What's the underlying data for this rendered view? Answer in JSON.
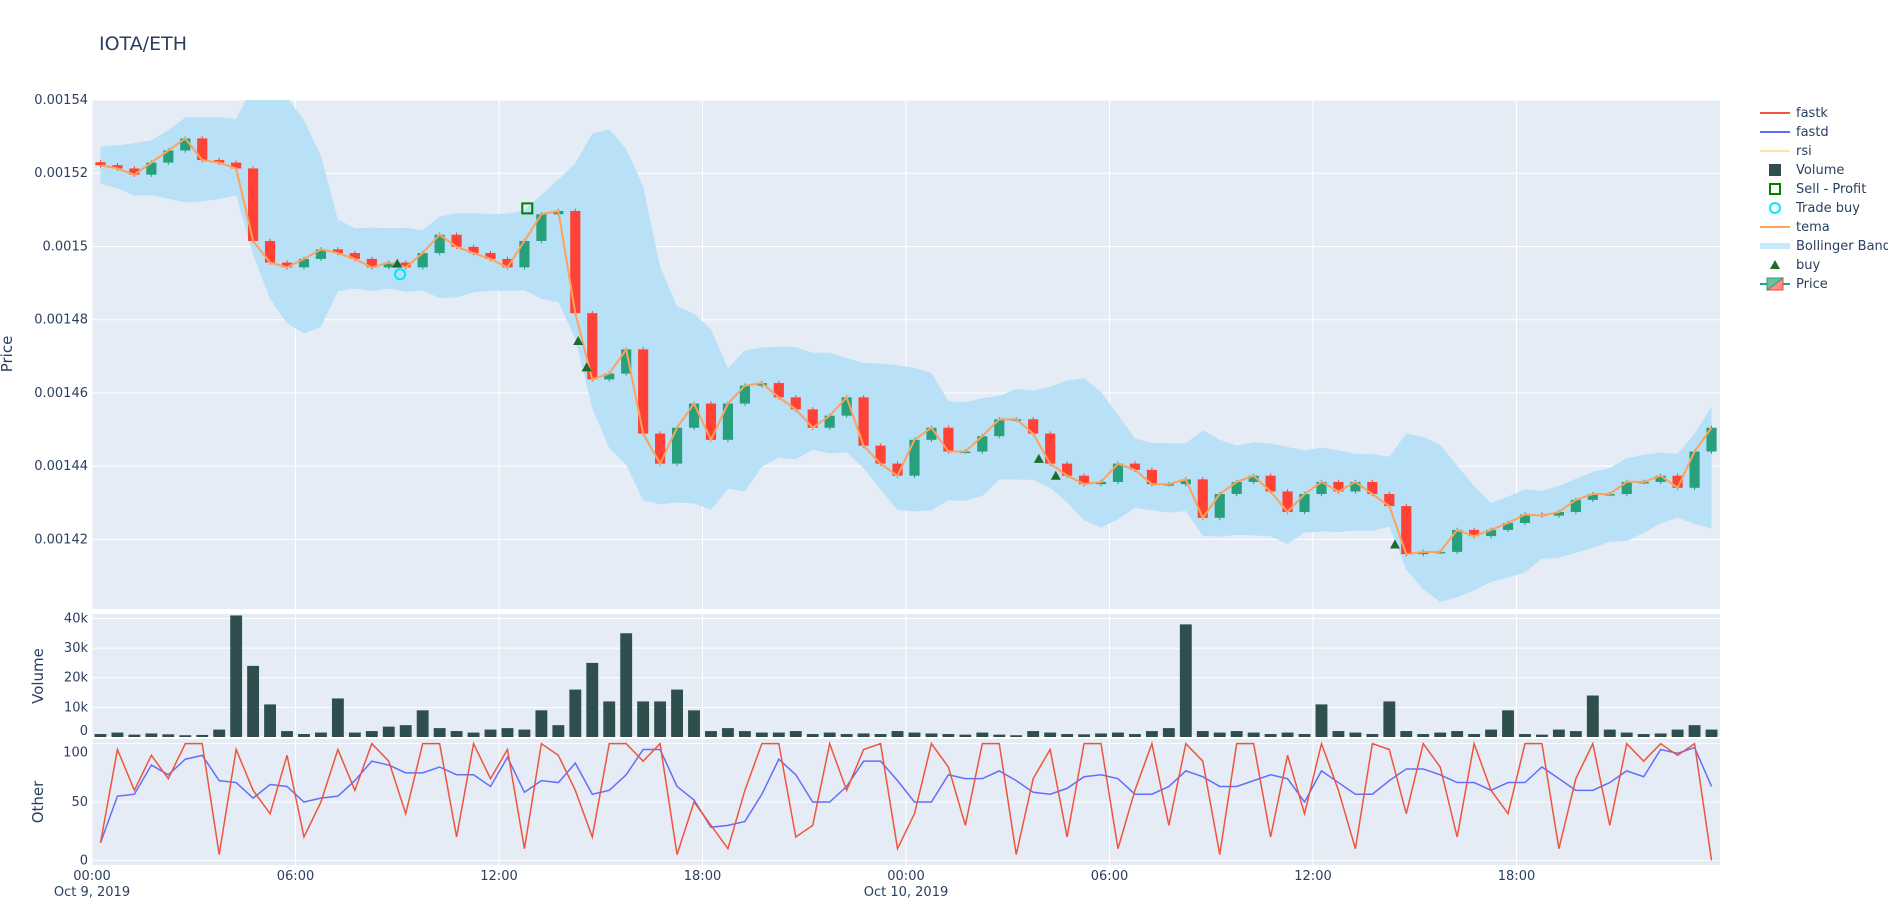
{
  "title": "IOTA/ETH",
  "colors": {
    "plot_bg": "#e5ecf6",
    "grid": "#ffffff",
    "increasing": "#26a17b",
    "decreasing": "#ff4136",
    "tema": "#ffa15a",
    "bollinger": "#b8e0f6",
    "volume": "#2f4f4f",
    "fastk": "#ef553b",
    "fastd": "#636efa",
    "rsi": "#ffe4a8",
    "buy": "#1e6b2a",
    "trade_buy": "#00e5ff",
    "sell_profit": "#008000"
  },
  "legend": {
    "placement": "right",
    "items": [
      {
        "label": "fastk",
        "icon": "line",
        "color": "#ef553b"
      },
      {
        "label": "fastd",
        "icon": "line",
        "color": "#636efa"
      },
      {
        "label": "rsi",
        "icon": "line-hidden",
        "color": "#ffe4a8"
      },
      {
        "label": "Volume",
        "icon": "square-filled",
        "color": "#2f4f4f"
      },
      {
        "label": "Sell - Profit",
        "icon": "square-open",
        "color": "#008000"
      },
      {
        "label": "Trade buy",
        "icon": "circle-open",
        "color": "#00e5ff"
      },
      {
        "label": "tema",
        "icon": "line",
        "color": "#ffa15a"
      },
      {
        "label": "Bollinger Band",
        "icon": "band",
        "color": "#c6e9fb"
      },
      {
        "label": "buy",
        "icon": "triangle-up",
        "color": "#1e6b2a"
      },
      {
        "label": "Price",
        "icon": "candle",
        "color": "#26a17b"
      }
    ]
  },
  "chart_data": [
    {
      "type": "candlestick",
      "ylabel": "Price",
      "ylim": [
        0.001401,
        0.00154
      ],
      "yticks": [
        0.00142,
        0.00144,
        0.00146,
        0.00148,
        0.0015,
        0.00152,
        0.00154
      ],
      "ytick_labels": [
        "0.00142",
        "0.00144",
        "0.00146",
        "0.00148",
        "0.0015",
        "0.00152",
        "0.00154"
      ],
      "grid": true,
      "close": [
        0.0015222,
        0.0015213,
        0.0015196,
        0.0015229,
        0.0015262,
        0.0015295,
        0.0015236,
        0.0015229,
        0.0015213,
        0.0015015,
        0.0014956,
        0.0014943,
        0.0014966,
        0.0014992,
        0.0014982,
        0.0014966,
        0.0014943,
        0.0014956,
        0.0014943,
        0.0014982,
        0.0015032,
        0.0014999,
        0.0014982,
        0.0014966,
        0.0014943,
        0.0015015,
        0.0015088,
        0.0015097,
        0.0014818,
        0.0014637,
        0.0014653,
        0.0014719,
        0.0014489,
        0.0014407,
        0.0014505,
        0.0014571,
        0.0014472,
        0.0014571,
        0.001462,
        0.0014627,
        0.0014588,
        0.0014555,
        0.0014505,
        0.0014538,
        0.0014588,
        0.0014456,
        0.0014407,
        0.0014374,
        0.0014472,
        0.0014505,
        0.001444,
        0.001444,
        0.0014482,
        0.0014528,
        0.0014528,
        0.0014489,
        0.0014407,
        0.0014374,
        0.0014351,
        0.0014357,
        0.0014407,
        0.001439,
        0.0014351,
        0.0014351,
        0.0014364,
        0.0014259,
        0.0014324,
        0.0014357,
        0.0014374,
        0.0014331,
        0.0014275,
        0.0014324,
        0.0014357,
        0.0014331,
        0.0014357,
        0.0014324,
        0.0014291,
        0.001416,
        0.0014166,
        0.0014166,
        0.0014226,
        0.0014209,
        0.0014226,
        0.0014245,
        0.0014268,
        0.0014265,
        0.0014275,
        0.0014308,
        0.0014324,
        0.0014324,
        0.0014357,
        0.0014357,
        0.0014374,
        0.0014341,
        0.001444,
        0.0014505
      ],
      "markers": {
        "buy": [
          {
            "x": "2019-10-09 09:00",
            "y": 0.0014953
          },
          {
            "x": "2019-10-09 14:20",
            "y": 0.0014742
          },
          {
            "x": "2019-10-09 14:35",
            "y": 0.001467
          },
          {
            "x": "2019-10-10 03:55",
            "y": 0.001442
          },
          {
            "x": "2019-10-10 04:25",
            "y": 0.0014374
          },
          {
            "x": "2019-10-10 14:25",
            "y": 0.0014186
          }
        ],
        "trade_buy": [
          {
            "x": "2019-10-09 09:05",
            "y": 0.0014924
          }
        ],
        "sell_profit": [
          {
            "x": "2019-10-09 12:50",
            "y": 0.0015104
          }
        ]
      }
    },
    {
      "type": "bar",
      "ylabel": "Volume",
      "ylim": [
        0,
        41500
      ],
      "yticks": [
        0,
        10000,
        20000,
        30000,
        40000
      ],
      "ytick_labels": [
        "0",
        "10k",
        "20k",
        "30k",
        "40k"
      ],
      "values": [
        1000,
        1500,
        800,
        1200,
        900,
        600,
        700,
        2500,
        41000,
        24000,
        11000,
        2000,
        1000,
        1500,
        13000,
        1500,
        2000,
        3500,
        4000,
        9000,
        3000,
        2000,
        1500,
        2500,
        3000,
        2500,
        9000,
        4000,
        16000,
        25000,
        12000,
        35000,
        12000,
        12000,
        16000,
        9000,
        2000,
        3000,
        2000,
        1500,
        1500,
        2000,
        1000,
        1500,
        1000,
        1200,
        1000,
        2000,
        1500,
        1200,
        1000,
        800,
        1500,
        800,
        600,
        2000,
        1500,
        1000,
        900,
        1200,
        1500,
        1000,
        2000,
        3000,
        38000,
        2000,
        1500,
        2000,
        1500,
        1000,
        1500,
        1000,
        11000,
        2000,
        1500,
        1000,
        12000,
        2000,
        1000,
        1500,
        2000,
        1000,
        2500,
        9000,
        1000,
        800,
        2500,
        2000,
        14000,
        2500,
        1500,
        1000,
        1200,
        2500,
        4000,
        2500
      ]
    },
    {
      "type": "line",
      "ylabel": "Other",
      "ylim": [
        -4,
        104
      ],
      "yticks": [
        0,
        50,
        100
      ],
      "ytick_labels": [
        "0",
        "50",
        "100"
      ],
      "series": [
        {
          "name": "fastk",
          "values": [
            15,
            95,
            60,
            90,
            70,
            100,
            100,
            5,
            95,
            60,
            40,
            90,
            20,
            50,
            95,
            60,
            100,
            85,
            40,
            100,
            100,
            20,
            100,
            70,
            95,
            10,
            100,
            90,
            60,
            20,
            100,
            100,
            85,
            100,
            5,
            50,
            30,
            10,
            60,
            100,
            100,
            20,
            30,
            100,
            60,
            95,
            100,
            10,
            40,
            100,
            80,
            30,
            100,
            100,
            5,
            70,
            95,
            20,
            100,
            100,
            10,
            60,
            100,
            30,
            100,
            85,
            5,
            100,
            100,
            20,
            90,
            40,
            100,
            60,
            10,
            100,
            95,
            40,
            100,
            80,
            20,
            100,
            60,
            40,
            100,
            100,
            10,
            70,
            100,
            30,
            100,
            85,
            100,
            90,
            100,
            0
          ]
        },
        {
          "name": "fastd"
        }
      ]
    }
  ],
  "x_axis": {
    "range": [
      "2019-10-09 00:00",
      "2019-10-10 23:55"
    ],
    "interval_minutes": 30,
    "ticks": [
      {
        "t": "2019-10-09 00:00",
        "label": "00:00",
        "sub": "Oct 9, 2019"
      },
      {
        "t": "2019-10-09 06:00",
        "label": "06:00",
        "sub": ""
      },
      {
        "t": "2019-10-09 12:00",
        "label": "12:00",
        "sub": ""
      },
      {
        "t": "2019-10-09 18:00",
        "label": "18:00",
        "sub": ""
      },
      {
        "t": "2019-10-10 00:00",
        "label": "00:00",
        "sub": "Oct 10, 2019"
      },
      {
        "t": "2019-10-10 06:00",
        "label": "06:00",
        "sub": ""
      },
      {
        "t": "2019-10-10 12:00",
        "label": "12:00",
        "sub": ""
      },
      {
        "t": "2019-10-10 18:00",
        "label": "18:00",
        "sub": ""
      }
    ]
  }
}
